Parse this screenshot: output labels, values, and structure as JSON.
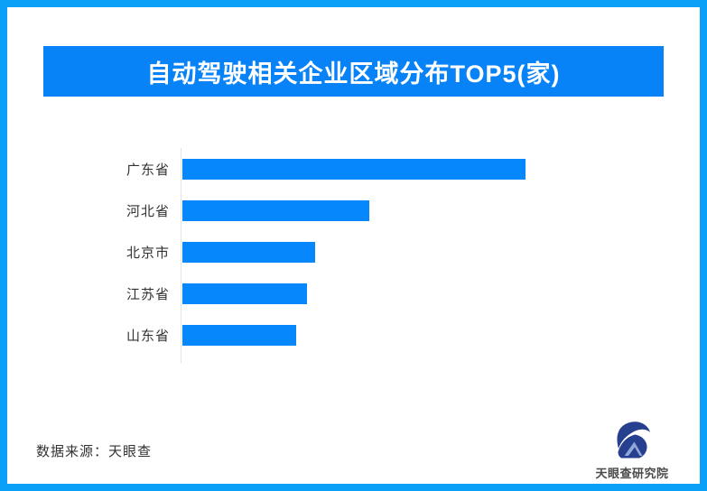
{
  "page": {
    "border_color": "#0aa0f7",
    "background": "#ffffff"
  },
  "header": {
    "title": "自动驾驶相关企业区域分布TOP5(家)",
    "background": "#0882f7",
    "text_color": "#ffffff"
  },
  "chart_data": {
    "type": "bar",
    "orientation": "horizontal",
    "title": "自动驾驶相关企业区域分布TOP5(家)",
    "categories": [
      "广东省",
      "河北省",
      "北京市",
      "江苏省",
      "山东省"
    ],
    "values": [
      100,
      54.5,
      38.7,
      36.3,
      33.2
    ],
    "value_unit": "relative length (no numeric labels or axis ticks shown in image)",
    "bar_color": "#0787fc",
    "axis_line_color": "#e3e3e3",
    "grid": false,
    "legend_position": "none",
    "xlabel": "",
    "ylabel": ""
  },
  "footer": {
    "source_label": "数据来源：天眼查",
    "logo_text": "天眼查研究院",
    "logo_color": "#263f8f",
    "logo_inner_color": "#8fa8d8"
  }
}
